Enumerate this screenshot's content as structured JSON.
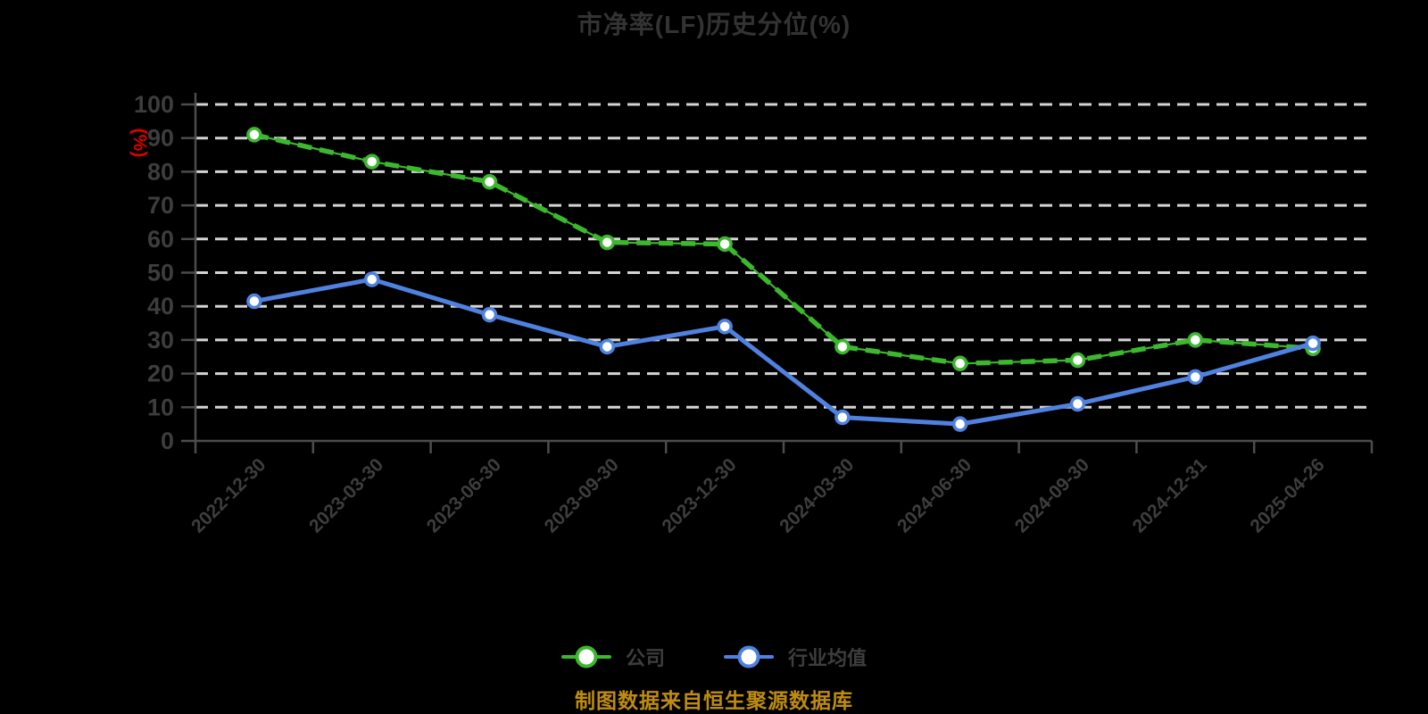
{
  "title": "市净率(LF)历史分位(%)",
  "footer": "制图数据来自恒生聚源数据库",
  "chart_data": {
    "type": "line",
    "title": "市净率(LF)历史分位(%)",
    "ylabel": "(%)",
    "xlabel": "",
    "ylim": [
      0,
      100
    ],
    "ytick_interval": 10,
    "grid": "horizontal-dashed",
    "legend_position": "bottom-center",
    "categories": [
      "2022-12-30",
      "2023-03-30",
      "2023-06-30",
      "2023-09-30",
      "2023-12-30",
      "2024-03-30",
      "2024-06-30",
      "2024-09-30",
      "2024-12-31",
      "2025-04-26"
    ],
    "series": [
      {
        "name": "公司",
        "color": "#3cb82e",
        "marker": "circle-white-fill",
        "line_style": "solid-with-dark-dashes",
        "values": [
          91,
          83,
          77,
          59,
          58.5,
          28,
          23,
          24,
          30,
          27.5
        ]
      },
      {
        "name": "行业均值",
        "color": "#4f82e0",
        "marker": "circle-white-fill",
        "line_style": "solid",
        "values": [
          41.5,
          48,
          37.5,
          28,
          34,
          7,
          5,
          11,
          19,
          29
        ]
      }
    ]
  },
  "colors": {
    "background": "#000000",
    "grid": "#d4d4d4",
    "axis": "#4c4c4c",
    "tick_label": "#3d3d3d",
    "title": "#333333",
    "ylabel_unit": "#dd0000",
    "footer": "#bf8d0e",
    "legend_label": "#3d3d3d",
    "marker_fill": "#ffffff"
  }
}
